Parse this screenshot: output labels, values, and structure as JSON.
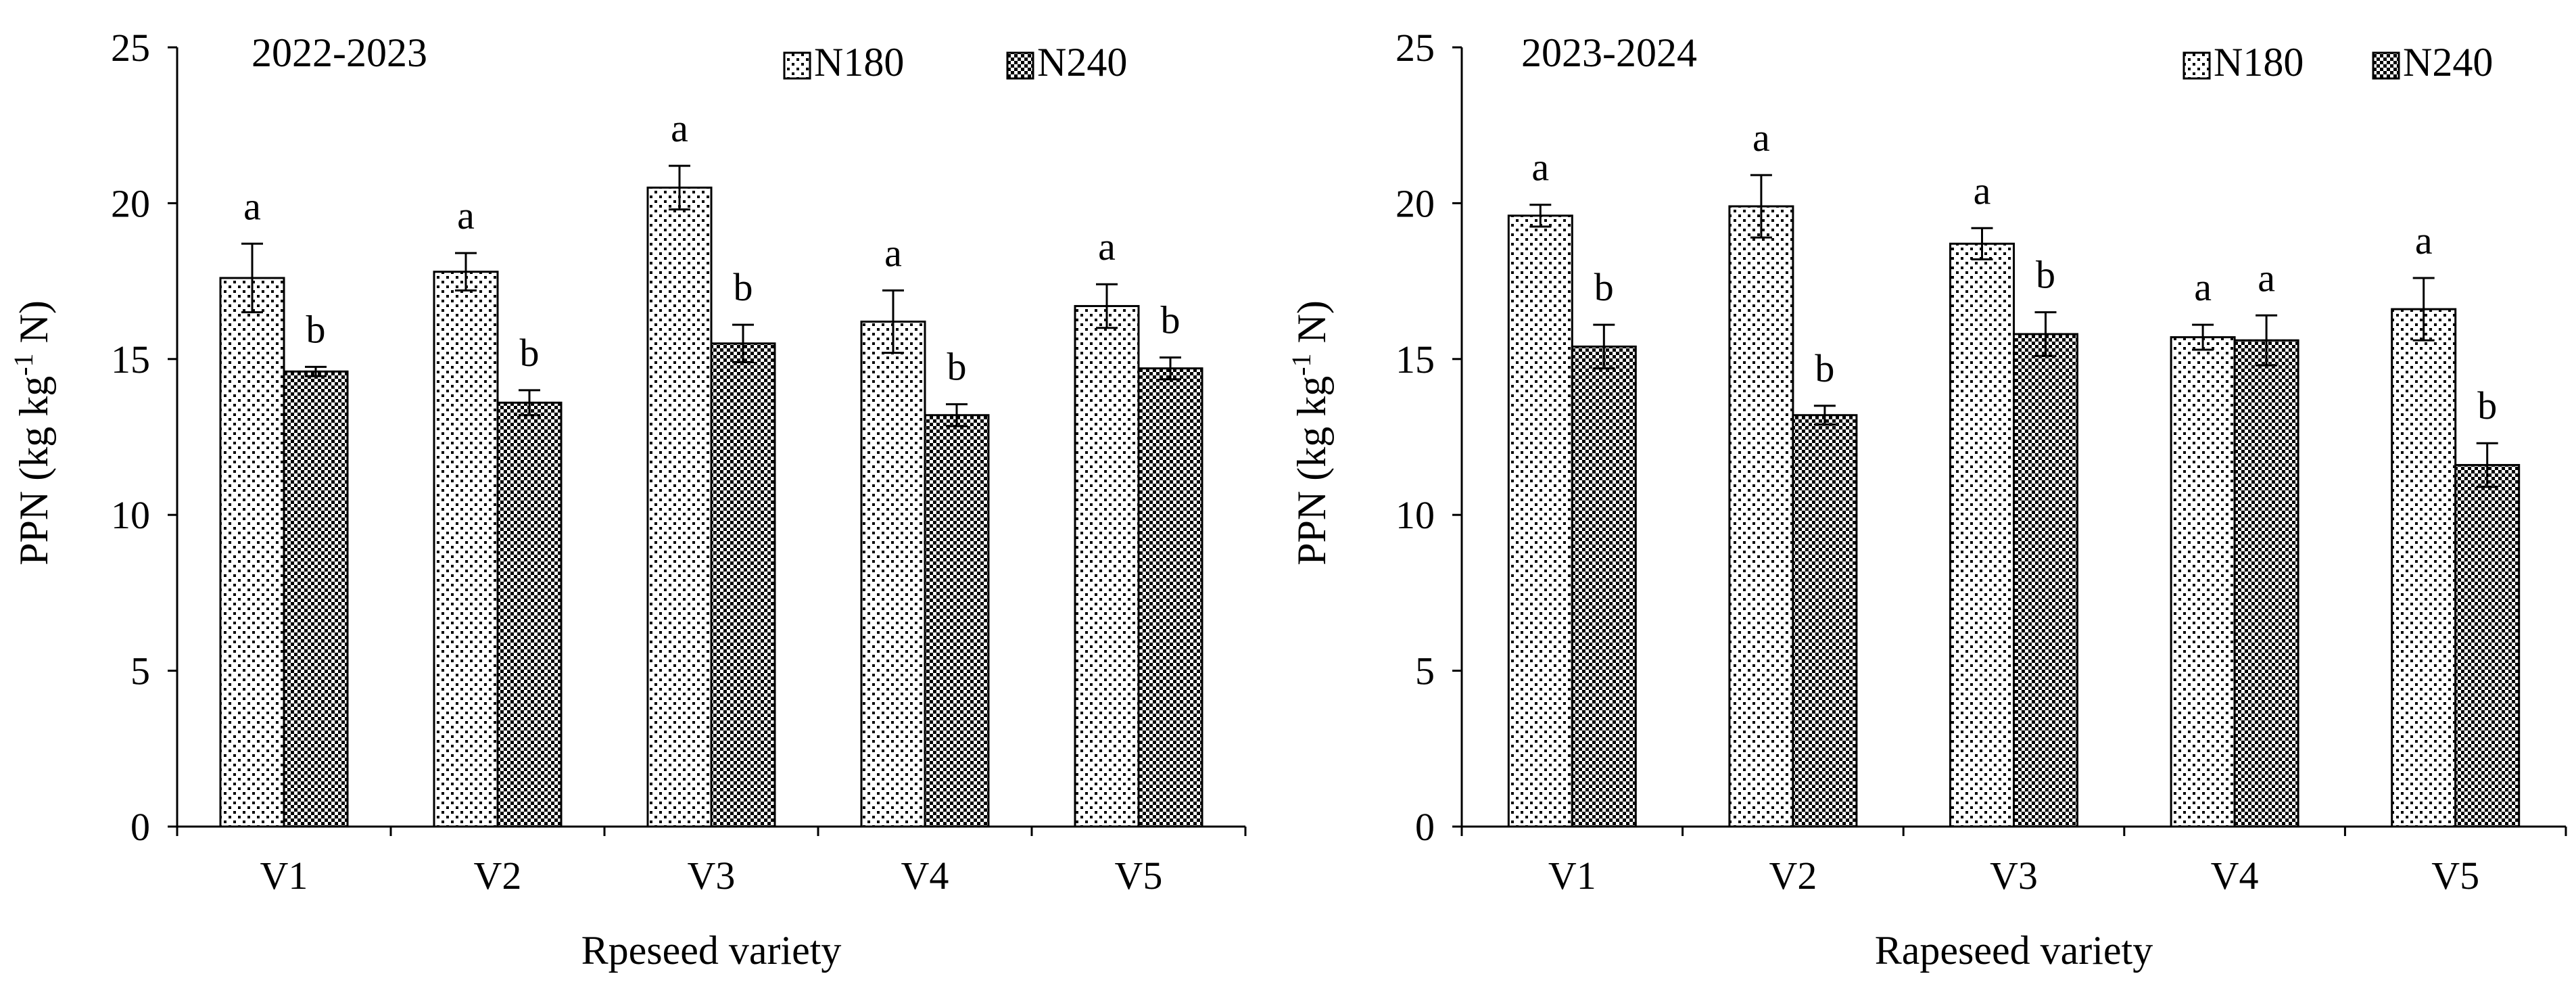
{
  "colors": {
    "axis": "#000000",
    "bar_outline": "#000000",
    "n180_dot": "#000000",
    "n240_check": "#000000",
    "background": "#ffffff"
  },
  "series_names": [
    "N180",
    "N240"
  ],
  "chart_data": [
    {
      "type": "bar",
      "title": "2022-2023",
      "xlabel": "Rpeseed variety",
      "ylabel": "PPN (kg kg-1 N)",
      "ylabel_parts": {
        "pre": "PPN (kg kg",
        "sup": "-1",
        "post": " N)"
      },
      "ylim": [
        0,
        25
      ],
      "yticks": [
        0,
        5,
        10,
        15,
        20,
        25
      ],
      "categories": [
        "V1",
        "V2",
        "V3",
        "V4",
        "V5"
      ],
      "legend_position": "top-right",
      "series": [
        {
          "name": "N180",
          "pattern": "dots",
          "values": [
            17.6,
            17.8,
            20.5,
            16.2,
            16.7
          ],
          "errors": [
            1.1,
            0.6,
            0.7,
            1.0,
            0.7
          ],
          "labels": [
            "a",
            "a",
            "a",
            "a",
            "a"
          ]
        },
        {
          "name": "N240",
          "pattern": "checker",
          "values": [
            14.6,
            13.6,
            15.5,
            13.2,
            14.7
          ],
          "errors": [
            0.15,
            0.4,
            0.6,
            0.35,
            0.35
          ],
          "labels": [
            "b",
            "b",
            "b",
            "b",
            "b"
          ]
        }
      ]
    },
    {
      "type": "bar",
      "title": "2023-2024",
      "xlabel": "Rapeseed variety",
      "ylabel": "PPN (kg kg-1 N)",
      "ylabel_parts": {
        "pre": "PPN (kg kg",
        "sup": "-1",
        "post": " N)"
      },
      "ylim": [
        0,
        25
      ],
      "yticks": [
        0,
        5,
        10,
        15,
        20,
        25
      ],
      "categories": [
        "V1",
        "V2",
        "V3",
        "V4",
        "V5"
      ],
      "legend_position": "top-right",
      "series": [
        {
          "name": "N180",
          "pattern": "dots",
          "values": [
            19.6,
            19.9,
            18.7,
            15.7,
            16.6
          ],
          "errors": [
            0.35,
            1.0,
            0.5,
            0.4,
            1.0
          ],
          "labels": [
            "a",
            "a",
            "a",
            "a",
            "a"
          ]
        },
        {
          "name": "N240",
          "pattern": "checker",
          "values": [
            15.4,
            13.2,
            15.8,
            15.6,
            11.6
          ],
          "errors": [
            0.7,
            0.3,
            0.7,
            0.8,
            0.7
          ],
          "labels": [
            "b",
            "b",
            "b",
            "a",
            "b"
          ]
        }
      ]
    }
  ]
}
